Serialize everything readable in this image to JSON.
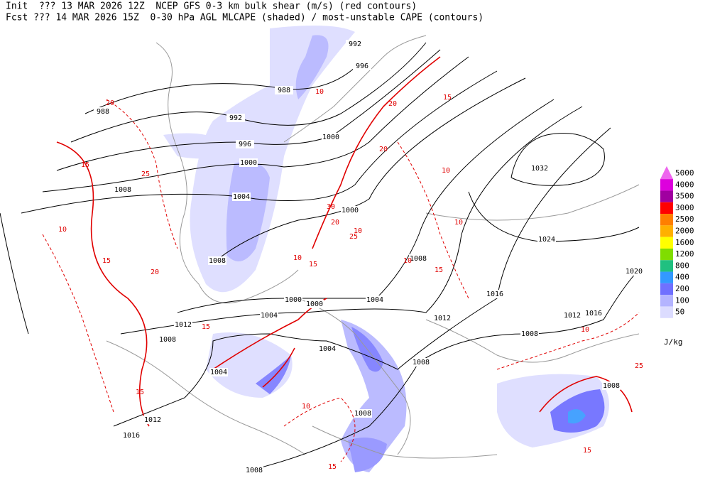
{
  "header": {
    "line1": "Init  ??? 13 MAR 2026 12Z  NCEP GFS 0-3 km bulk shear (m/s) (red contours)",
    "line2": "Fcst ??? 14 MAR 2026 15Z  0-30 hPa AGL MLCAPE (shaded) / most-unstable CAPE (contours)"
  },
  "colorbar": {
    "unit": "J/kg",
    "levels": [
      5000,
      4000,
      3500,
      3000,
      2500,
      2000,
      1600,
      1200,
      800,
      400,
      200,
      100,
      50
    ],
    "colors": [
      "#ee66ee",
      "#dd00dd",
      "#a000a0",
      "#ff0000",
      "#ff7f00",
      "#ffb000",
      "#ffff00",
      "#80dd00",
      "#20c080",
      "#3399ff",
      "#7070ff",
      "#b4b4ff",
      "#dcdcff"
    ]
  },
  "isobar_labels": [
    992,
    996,
    988,
    988,
    992,
    996,
    1000,
    1000,
    1004,
    1008,
    1000,
    1032,
    1024,
    1008,
    1008,
    1020,
    1016,
    1004,
    1000,
    1000,
    1004,
    1012,
    1012,
    1012,
    1016,
    1008,
    1004,
    1008,
    1008,
    1004,
    1008,
    1008,
    1012,
    1016,
    1008
  ],
  "shear_labels": [
    20,
    25,
    15,
    10,
    15,
    20,
    15,
    30,
    20,
    25,
    10,
    10,
    20,
    15,
    10,
    10,
    15,
    10,
    10,
    15,
    15,
    10,
    15,
    15,
    25,
    20,
    10
  ]
}
